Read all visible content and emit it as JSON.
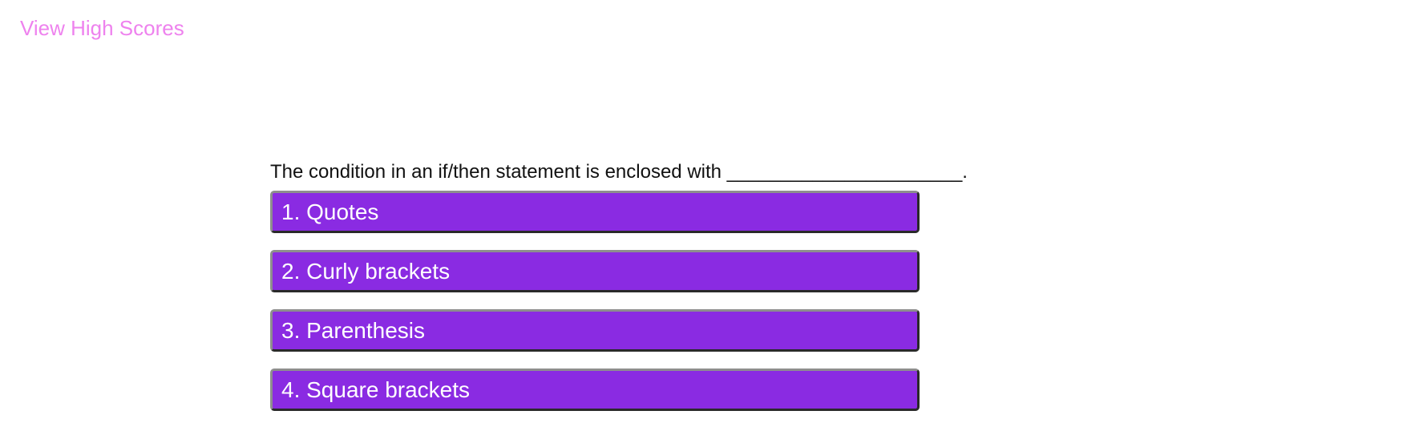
{
  "header": {
    "high_scores_link": "View High Scores"
  },
  "quiz": {
    "question": "The condition in an if/then statement is enclosed with ______________________.",
    "choices": [
      {
        "label": "1. Quotes"
      },
      {
        "label": "2. Curly brackets"
      },
      {
        "label": "3. Parenthesis"
      },
      {
        "label": "4. Square brackets"
      }
    ]
  },
  "colors": {
    "link": "#ee82ee",
    "choice_background": "#8a2be2",
    "choice_text": "#ffffff",
    "question_text": "#111111"
  }
}
